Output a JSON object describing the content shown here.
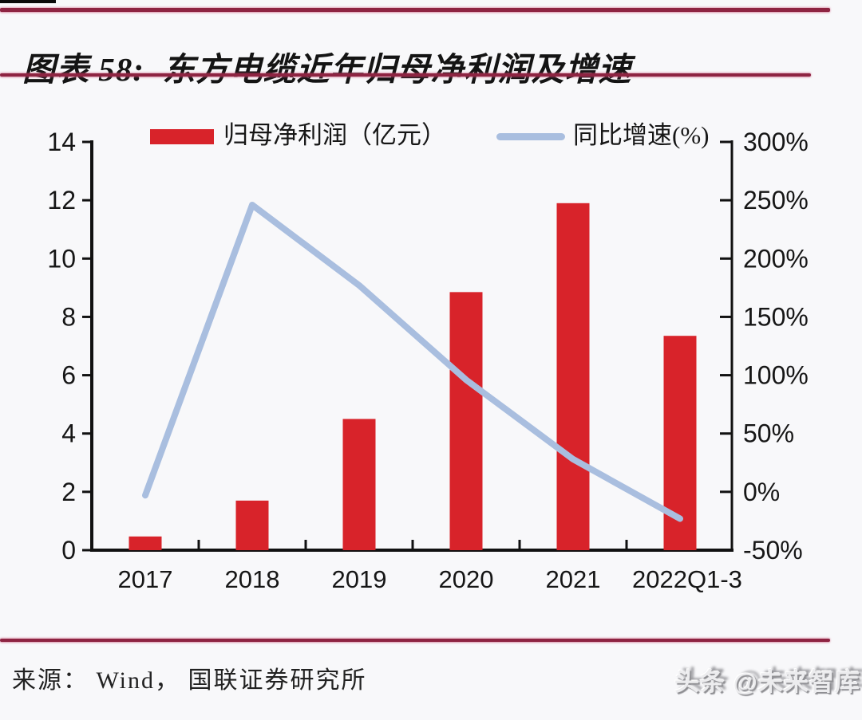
{
  "page": {
    "title": "图表 58:  东方电缆近年归母净利润及增速",
    "source": "来源： Wind， 国联证券研究所"
  },
  "watermark": {
    "text": "头条 @未来智库"
  },
  "colors": {
    "bar": "#d8232a",
    "line": "#a9bedf",
    "rule": "#8e2442",
    "axis": "#111111",
    "background": "#f8f8fa"
  },
  "chart_data": {
    "type": "bar",
    "subtype": "dual-axis bar + line combo",
    "title": "东方电缆近年归母净利润及增速",
    "categories": [
      "2017",
      "2018",
      "2019",
      "2020",
      "2021",
      "2022Q1-3"
    ],
    "series": [
      {
        "name": "归母净利润（亿元）",
        "type": "bar",
        "axis": "left",
        "color": "#d8232a",
        "values": [
          0.47,
          1.7,
          4.5,
          8.85,
          11.9,
          7.35
        ]
      },
      {
        "name": "同比增速(%)",
        "type": "line",
        "axis": "right",
        "color": "#a9bedf",
        "values": [
          -3,
          246,
          177,
          96,
          28,
          -23
        ]
      }
    ],
    "left_axis": {
      "range": [
        0,
        14
      ],
      "ticks": [
        0,
        2,
        4,
        6,
        8,
        10,
        12,
        14
      ]
    },
    "right_axis": {
      "range": [
        -50,
        300
      ],
      "ticks": [
        -50,
        0,
        50,
        100,
        150,
        200,
        250,
        300
      ],
      "suffix": "%"
    },
    "legend_position": "top",
    "grid": false
  }
}
